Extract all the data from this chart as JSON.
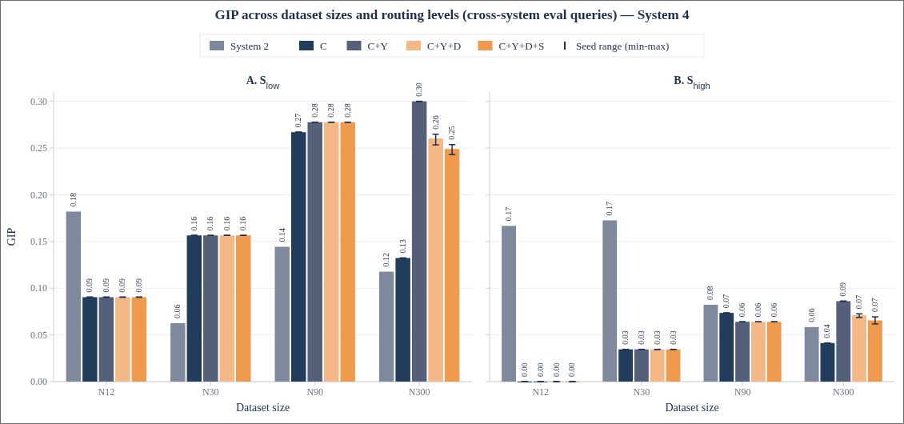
{
  "chart_data": [
    {
      "type": "bar",
      "title": "GIP across dataset sizes and routing levels (cross-system eval queries) — System 4",
      "subtitle": "A. S$_{low}$",
      "xlabel": "Dataset size",
      "ylabel": "GIP",
      "categories": [
        "N12",
        "N30",
        "N90",
        "N300"
      ],
      "ylim": [
        0,
        0.31
      ],
      "yticks": [
        {
          "value": 0,
          "label": "0.00"
        },
        0.05,
        {
          "value": 0.1,
          "label": "0.10"
        },
        0.15,
        {
          "value": 0.2,
          "label": "0.20"
        },
        0.25,
        {
          "value": 0.3,
          "label": "0.30"
        }
      ],
      "grid": "y",
      "legend": "top",
      "annotations": [
        "Seed range (min-max)"
      ],
      "series": [
        {
          "name": "System 2",
          "color": "#7f899c",
          "values": [
            0.182,
            0.0626,
            0.1443,
            0.1177
          ],
          "value_labels": [
            "0.18",
            "0.06",
            "0.14",
            "0.12"
          ]
        },
        {
          "name": "C",
          "color": "#223c5c",
          "values": [
            0.0904,
            0.1565,
            0.267,
            0.1323
          ],
          "errors": [
            0,
            0,
            0,
            0
          ],
          "value_labels": [
            "0.09",
            "0.16",
            "0.27",
            "0.13"
          ]
        },
        {
          "name": "C+Y",
          "color": "#54607a",
          "values": [
            0.0904,
            0.1565,
            0.2777,
            0.3
          ],
          "errors": [
            0,
            0,
            0,
            0
          ],
          "value_labels": [
            "0.09",
            "0.16",
            "0.28",
            "0.30"
          ]
        },
        {
          "name": "C+Y+D",
          "color": "#f4b886",
          "values": [
            0.0904,
            0.1565,
            0.2777,
            0.2603
          ],
          "errors": [
            0,
            0,
            0,
            [
              0.2534,
              0.2648
            ]
          ],
          "value_labels": [
            "0.09",
            "0.16",
            "0.28",
            "0.26"
          ]
        },
        {
          "name": "C+Y+D+S",
          "color": "#ef9a4c",
          "values": [
            0.0904,
            0.1565,
            0.2777,
            0.249
          ],
          "errors": [
            0,
            0,
            0,
            [
              0.243,
              0.2537
            ]
          ],
          "value_labels": [
            "0.09",
            "0.16",
            "0.28",
            "0.25"
          ]
        }
      ]
    },
    {
      "type": "bar",
      "subtitle": "B. S$_{high}$",
      "xlabel": "Dataset size",
      "categories": [
        "N12",
        "N30",
        "N90",
        "N300"
      ],
      "ylim": [
        0,
        0.31
      ],
      "yticks": [
        {
          "value": 0,
          "label": null
        },
        {
          "value": 0.05,
          "label": null
        },
        {
          "value": 0.1,
          "label": null
        },
        {
          "value": 0.15,
          "label": null
        },
        {
          "value": 0.2,
          "label": null
        },
        {
          "value": 0.25,
          "label": null
        },
        {
          "value": 0.3,
          "label": null
        }
      ],
      "tick_labels": "x",
      "grid": "y",
      "series": [
        {
          "color": "#7f899c",
          "values": [
            0.1667,
            0.1726,
            0.0823,
            0.0584
          ],
          "value_labels": [
            "0.17",
            "0.17",
            "0.08",
            "0.06"
          ]
        },
        {
          "color": "#223c5c",
          "values": [
            0,
            0.0345,
            0.0735,
            0.0413
          ],
          "errors": [
            0,
            0,
            0,
            0
          ],
          "value_labels": [
            "0.00",
            "0.03",
            "0.07",
            "0.04"
          ]
        },
        {
          "color": "#54607a",
          "values": [
            0,
            0.0345,
            0.064,
            0.0861
          ],
          "errors": [
            0,
            0,
            0,
            0
          ],
          "value_labels": [
            "0.00",
            "0.03",
            "0.06",
            "0.09"
          ]
        },
        {
          "color": "#f4b886",
          "values": [
            0,
            0.0345,
            0.064,
            0.0711
          ],
          "errors": [
            0,
            0,
            0,
            [
              0.0687,
              0.0726
            ]
          ],
          "value_labels": [
            "0.00",
            "0.03",
            "0.06",
            "0.07"
          ]
        },
        {
          "color": "#ef9a4c",
          "values": [
            0,
            0.0345,
            0.064,
            0.0655
          ],
          "errors": [
            0,
            0,
            0,
            [
              0.0617,
              0.0693
            ]
          ],
          "value_labels": [
            "0.00",
            "0.03",
            "0.06",
            "0.07"
          ]
        }
      ]
    }
  ]
}
